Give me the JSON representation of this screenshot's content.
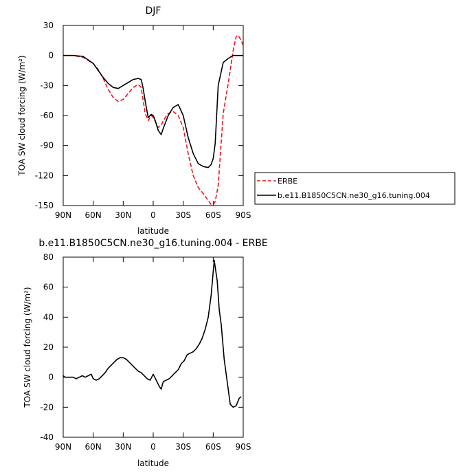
{
  "chart_data": [
    {
      "type": "line",
      "title": "DJF",
      "xlabel": "latitude",
      "ylabel": "TOA SW cloud forcing (W/m²)",
      "xlim": [
        90,
        -90
      ],
      "ylim": [
        -150,
        30
      ],
      "x_ticks": [
        90,
        60,
        30,
        0,
        -30,
        -60,
        -90
      ],
      "x_tick_labels": [
        "90N",
        "60N",
        "30N",
        "0",
        "30S",
        "60S",
        "90S"
      ],
      "y_ticks": [
        30,
        0,
        -30,
        -60,
        -90,
        -120,
        -150
      ],
      "y_tick_labels": [
        "30",
        "0",
        "-30",
        "-60",
        "-90",
        "-120",
        "-150"
      ],
      "legend_placement": "outside-right",
      "series": [
        {
          "name": "ERBE",
          "color": "#e8141b",
          "dash": "dashed",
          "x": [
            90,
            80,
            70,
            60,
            55,
            50,
            45,
            40,
            35,
            30,
            25,
            20,
            15,
            12,
            10,
            8,
            5,
            2,
            0,
            -2,
            -5,
            -8,
            -10,
            -15,
            -20,
            -25,
            -30,
            -35,
            -40,
            -45,
            -50,
            -55,
            -58,
            -60,
            -62,
            -65,
            -70,
            -75,
            -80,
            -83,
            -85,
            -88,
            -90
          ],
          "y": [
            0,
            0,
            -2,
            -8,
            -14,
            -23,
            -34,
            -42,
            -46,
            -44,
            -38,
            -32,
            -29,
            -32,
            -45,
            -58,
            -65,
            -60,
            -62,
            -66,
            -72,
            -70,
            -65,
            -58,
            -56,
            -60,
            -72,
            -98,
            -120,
            -132,
            -138,
            -145,
            -149,
            -149,
            -146,
            -130,
            -58,
            -28,
            5,
            19,
            20,
            15,
            10
          ]
        },
        {
          "name": "b.e11.B1850C5CN.ne30_g16.tuning.004",
          "color": "#000000",
          "dash": "solid",
          "x": [
            90,
            80,
            70,
            60,
            55,
            50,
            45,
            40,
            35,
            30,
            25,
            20,
            15,
            12,
            10,
            8,
            5,
            2,
            0,
            -2,
            -5,
            -8,
            -10,
            -15,
            -20,
            -25,
            -30,
            -35,
            -40,
            -45,
            -50,
            -55,
            -58,
            -60,
            -62,
            -65,
            -70,
            -75,
            -80,
            -83,
            -85,
            -88,
            -90
          ],
          "y": [
            0,
            0,
            -1,
            -8,
            -15,
            -22,
            -28,
            -32,
            -33,
            -30,
            -27,
            -24,
            -23,
            -24,
            -33,
            -46,
            -62,
            -59,
            -60,
            -65,
            -75,
            -79,
            -73,
            -60,
            -52,
            -49,
            -60,
            -82,
            -98,
            -108,
            -111,
            -112,
            -109,
            -103,
            -88,
            -30,
            -7,
            -3,
            0,
            0,
            0,
            0,
            0
          ]
        }
      ]
    },
    {
      "type": "line",
      "title": "b.e11.B1850C5CN.ne30_g16.tuning.004 - ERBE",
      "xlabel": "latitude",
      "ylabel": "TOA SW cloud forcing (W/m²)",
      "xlim": [
        90,
        -90
      ],
      "ylim": [
        -40,
        80
      ],
      "x_ticks": [
        90,
        60,
        30,
        0,
        -30,
        -60,
        -90
      ],
      "x_tick_labels": [
        "90N",
        "60N",
        "30N",
        "0",
        "30S",
        "60S",
        "90S"
      ],
      "y_ticks": [
        80,
        60,
        40,
        20,
        0,
        -20,
        -40
      ],
      "y_tick_labels": [
        "80",
        "60",
        "40",
        "20",
        "0",
        "-20",
        "-40"
      ],
      "series": [
        {
          "color": "#000000",
          "dash": "solid",
          "x": [
            90,
            88,
            85,
            82,
            80,
            77,
            74,
            71,
            68,
            65,
            62,
            60,
            57,
            54,
            51,
            48,
            45,
            42,
            39,
            36,
            33,
            30,
            27,
            24,
            21,
            18,
            15,
            12,
            9,
            6,
            3,
            0,
            -3,
            -6,
            -8,
            -10,
            -13,
            -16,
            -19,
            -22,
            -25,
            -28,
            -31,
            -34,
            -37,
            -40,
            -43,
            -46,
            -49,
            -52,
            -55,
            -58,
            -61,
            -64,
            -66,
            -68,
            -71,
            -74,
            -77,
            -80,
            -83,
            -86,
            -88
          ],
          "y": [
            1,
            0,
            0,
            0,
            0,
            -1,
            0,
            1,
            0,
            1,
            2,
            -1,
            -2,
            -1,
            1,
            3,
            6,
            8,
            10,
            12,
            13,
            13,
            12,
            10,
            8,
            6,
            4,
            3,
            1,
            -1,
            -2,
            2,
            -2,
            -6,
            -8,
            -3,
            -2,
            -1,
            1,
            3,
            5,
            9,
            11,
            15,
            16,
            17,
            19,
            22,
            26,
            32,
            40,
            55,
            78,
            64,
            45,
            35,
            12,
            -3,
            -18,
            -20,
            -19,
            -14,
            -13
          ]
        }
      ]
    }
  ]
}
